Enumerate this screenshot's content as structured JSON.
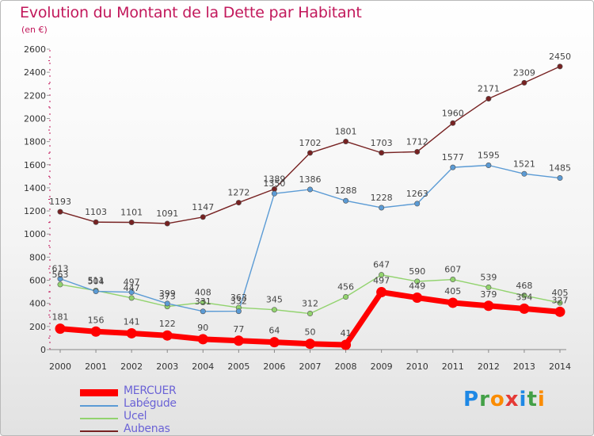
{
  "title": "Evolution du Montant de la Dette par Habitant",
  "subtitle": "(en €)",
  "logo": {
    "text": "Proxiti",
    "letters": [
      {
        "ch": "P",
        "color": "#1e88e5"
      },
      {
        "ch": "r",
        "color": "#43a047"
      },
      {
        "ch": "o",
        "color": "#fb8c00"
      },
      {
        "ch": "x",
        "color": "#e53935"
      },
      {
        "ch": "i",
        "color": "#1e88e5"
      },
      {
        "ch": "t",
        "color": "#43a047"
      },
      {
        "ch": "i",
        "color": "#fb8c00"
      }
    ]
  },
  "chart_data": {
    "type": "line",
    "title": "Evolution du Montant de la Dette par Habitant",
    "ylabel": "(en €)",
    "ylim": [
      0,
      2600
    ],
    "yticks": [
      0,
      200,
      400,
      600,
      800,
      1000,
      1200,
      1400,
      1600,
      1800,
      2000,
      2200,
      2400,
      2600
    ],
    "categories": [
      "2000",
      "2001",
      "2002",
      "2003",
      "2004",
      "2005",
      "2006",
      "2007",
      "2008",
      "2009",
      "2010",
      "2011",
      "2012",
      "2013",
      "2014"
    ],
    "grid": false,
    "legend": "bottom-left",
    "series": [
      {
        "name": "MERCUER",
        "color": "#ff0000",
        "thick": true,
        "values": [
          181,
          156,
          141,
          122,
          90,
          77,
          64,
          50,
          41,
          497,
          449,
          405,
          379,
          354,
          327
        ]
      },
      {
        "name": "Labégude",
        "color": "#5b9bd5",
        "thick": false,
        "values": [
          613,
          504,
          497,
          399,
          331,
          332,
          1350,
          1386,
          1288,
          1228,
          1263,
          1577,
          1595,
          1521,
          1485
        ]
      },
      {
        "name": "Ucel",
        "color": "#92d36e",
        "thick": false,
        "values": [
          563,
          511,
          447,
          373,
          408,
          363,
          345,
          312,
          456,
          647,
          590,
          607,
          539,
          468,
          405
        ]
      },
      {
        "name": "Aubenas",
        "color": "#772222",
        "thick": false,
        "values": [
          1193,
          1103,
          1101,
          1091,
          1147,
          1272,
          1389,
          1702,
          1801,
          1703,
          1712,
          1960,
          2171,
          2309,
          2450
        ]
      }
    ]
  }
}
